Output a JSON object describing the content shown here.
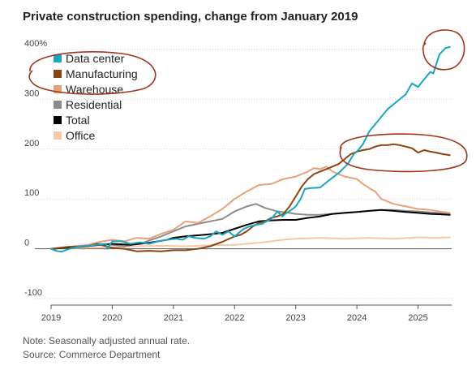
{
  "title": "Private construction spending, change from January 2019",
  "note": "Note: Seasonally adjusted annual rate.",
  "source": "Source: Commerce Department",
  "chart_data": {
    "type": "line",
    "title": "Private construction spending, change from January 2019",
    "ylabel": "",
    "xlabel": "",
    "ylim": [
      -100,
      400
    ],
    "xlim": [
      2019,
      2025.55
    ],
    "y_ticks": [
      {
        "value": 400,
        "label": "400%"
      },
      {
        "value": 300,
        "label": "300"
      },
      {
        "value": 200,
        "label": "200"
      },
      {
        "value": 100,
        "label": "100"
      },
      {
        "value": 0,
        "label": "0"
      },
      {
        "value": -100,
        "label": "-100"
      }
    ],
    "x_ticks": [
      "2019",
      "2020",
      "2021",
      "2022",
      "2023",
      "2024",
      "2025"
    ],
    "grid": "horizontal dotted",
    "legend_position": "top-left",
    "series": [
      {
        "name": "Data center",
        "color": "#1aa6c0",
        "points": [
          [
            2019,
            0
          ],
          [
            2019.08,
            -4
          ],
          [
            2019.17,
            -6
          ],
          [
            2019.3,
            0
          ],
          [
            2019.45,
            4
          ],
          [
            2019.6,
            6
          ],
          [
            2019.75,
            8
          ],
          [
            2019.9,
            10
          ],
          [
            2019.92,
            0
          ],
          [
            2020.0,
            15
          ],
          [
            2020.15,
            15
          ],
          [
            2020.3,
            10
          ],
          [
            2020.45,
            13
          ],
          [
            2020.6,
            10
          ],
          [
            2020.75,
            15
          ],
          [
            2020.9,
            18
          ],
          [
            2021.05,
            20
          ],
          [
            2021.15,
            18
          ],
          [
            2021.25,
            25
          ],
          [
            2021.35,
            22
          ],
          [
            2021.5,
            20
          ],
          [
            2021.6,
            25
          ],
          [
            2021.7,
            35
          ],
          [
            2021.8,
            28
          ],
          [
            2021.9,
            35
          ],
          [
            2022.0,
            25
          ],
          [
            2022.15,
            40
          ],
          [
            2022.25,
            45
          ],
          [
            2022.35,
            48
          ],
          [
            2022.45,
            50
          ],
          [
            2022.6,
            60
          ],
          [
            2022.7,
            75
          ],
          [
            2022.78,
            65
          ],
          [
            2022.85,
            72
          ],
          [
            2022.95,
            80
          ],
          [
            2023.0,
            85
          ],
          [
            2023.08,
            100
          ],
          [
            2023.15,
            120
          ],
          [
            2023.25,
            122
          ],
          [
            2023.4,
            123
          ],
          [
            2023.55,
            138
          ],
          [
            2023.7,
            152
          ],
          [
            2023.85,
            170
          ],
          [
            2023.95,
            190
          ],
          [
            2024.0,
            195
          ],
          [
            2024.1,
            210
          ],
          [
            2024.2,
            235
          ],
          [
            2024.3,
            250
          ],
          [
            2024.4,
            265
          ],
          [
            2024.5,
            280
          ],
          [
            2024.6,
            290
          ],
          [
            2024.7,
            300
          ],
          [
            2024.8,
            310
          ],
          [
            2024.9,
            332
          ],
          [
            2025.0,
            325
          ],
          [
            2025.1,
            340
          ],
          [
            2025.2,
            355
          ],
          [
            2025.25,
            352
          ],
          [
            2025.35,
            390
          ],
          [
            2025.45,
            403
          ],
          [
            2025.52,
            405
          ]
        ]
      },
      {
        "name": "Manufacturing",
        "color": "#8b4513",
        "points": [
          [
            2019,
            0
          ],
          [
            2019.3,
            4
          ],
          [
            2019.6,
            5
          ],
          [
            2019.75,
            10
          ],
          [
            2020.0,
            2
          ],
          [
            2020.2,
            0
          ],
          [
            2020.4,
            -5
          ],
          [
            2020.6,
            -4
          ],
          [
            2020.8,
            -5
          ],
          [
            2021.0,
            -3
          ],
          [
            2021.2,
            -3
          ],
          [
            2021.4,
            0
          ],
          [
            2021.6,
            5
          ],
          [
            2021.8,
            14
          ],
          [
            2022.0,
            25
          ],
          [
            2022.1,
            28
          ],
          [
            2022.2,
            35
          ],
          [
            2022.3,
            45
          ],
          [
            2022.4,
            52
          ],
          [
            2022.5,
            55
          ],
          [
            2022.6,
            62
          ],
          [
            2022.7,
            65
          ],
          [
            2022.8,
            70
          ],
          [
            2022.9,
            85
          ],
          [
            2023.0,
            105
          ],
          [
            2023.1,
            125
          ],
          [
            2023.2,
            140
          ],
          [
            2023.3,
            150
          ],
          [
            2023.4,
            155
          ],
          [
            2023.5,
            160
          ],
          [
            2023.6,
            165
          ],
          [
            2023.7,
            170
          ],
          [
            2023.8,
            180
          ],
          [
            2023.9,
            190
          ],
          [
            2024.0,
            195
          ],
          [
            2024.1,
            198
          ],
          [
            2024.2,
            200
          ],
          [
            2024.3,
            205
          ],
          [
            2024.4,
            208
          ],
          [
            2024.5,
            208
          ],
          [
            2024.6,
            210
          ],
          [
            2024.7,
            208
          ],
          [
            2024.8,
            205
          ],
          [
            2024.9,
            202
          ],
          [
            2025.0,
            193
          ],
          [
            2025.1,
            198
          ],
          [
            2025.2,
            195
          ],
          [
            2025.3,
            193
          ],
          [
            2025.4,
            190
          ],
          [
            2025.52,
            188
          ]
        ]
      },
      {
        "name": "Warehouse",
        "color": "#e8a27a",
        "points": [
          [
            2019,
            0
          ],
          [
            2019.3,
            4
          ],
          [
            2019.6,
            8
          ],
          [
            2019.8,
            14
          ],
          [
            2020.0,
            18
          ],
          [
            2020.2,
            15
          ],
          [
            2020.4,
            22
          ],
          [
            2020.6,
            20
          ],
          [
            2020.8,
            30
          ],
          [
            2021.0,
            38
          ],
          [
            2021.2,
            55
          ],
          [
            2021.4,
            52
          ],
          [
            2021.6,
            65
          ],
          [
            2021.8,
            80
          ],
          [
            2022.0,
            100
          ],
          [
            2022.2,
            115
          ],
          [
            2022.4,
            128
          ],
          [
            2022.6,
            130
          ],
          [
            2022.8,
            140
          ],
          [
            2023.0,
            145
          ],
          [
            2023.2,
            155
          ],
          [
            2023.3,
            162
          ],
          [
            2023.4,
            160
          ],
          [
            2023.5,
            165
          ],
          [
            2023.6,
            155
          ],
          [
            2023.8,
            145
          ],
          [
            2024.0,
            140
          ],
          [
            2024.1,
            130
          ],
          [
            2024.2,
            122
          ],
          [
            2024.3,
            115
          ],
          [
            2024.4,
            100
          ],
          [
            2024.6,
            90
          ],
          [
            2024.8,
            85
          ],
          [
            2025.0,
            80
          ],
          [
            2025.2,
            78
          ],
          [
            2025.4,
            74
          ],
          [
            2025.52,
            72
          ]
        ]
      },
      {
        "name": "Residential",
        "color": "#8c8c8c",
        "points": [
          [
            2019,
            0
          ],
          [
            2019.4,
            4
          ],
          [
            2019.8,
            10
          ],
          [
            2020.0,
            8
          ],
          [
            2020.2,
            5
          ],
          [
            2020.5,
            12
          ],
          [
            2020.8,
            25
          ],
          [
            2021.0,
            35
          ],
          [
            2021.2,
            45
          ],
          [
            2021.4,
            50
          ],
          [
            2021.6,
            55
          ],
          [
            2021.8,
            60
          ],
          [
            2022.0,
            75
          ],
          [
            2022.2,
            85
          ],
          [
            2022.35,
            90
          ],
          [
            2022.5,
            82
          ],
          [
            2022.7,
            75
          ],
          [
            2022.9,
            72
          ],
          [
            2023.0,
            70
          ],
          [
            2023.2,
            68
          ],
          [
            2023.4,
            68
          ],
          [
            2023.6,
            70
          ],
          [
            2023.8,
            72
          ],
          [
            2024.0,
            74
          ],
          [
            2024.2,
            76
          ],
          [
            2024.4,
            78
          ],
          [
            2024.6,
            78
          ],
          [
            2024.8,
            76
          ],
          [
            2025.0,
            75
          ],
          [
            2025.2,
            73
          ],
          [
            2025.52,
            71
          ]
        ]
      },
      {
        "name": "Total",
        "color": "#000000",
        "points": [
          [
            2019,
            0
          ],
          [
            2019.4,
            3
          ],
          [
            2019.8,
            8
          ],
          [
            2020.0,
            10
          ],
          [
            2020.3,
            8
          ],
          [
            2020.6,
            12
          ],
          [
            2020.9,
            18
          ],
          [
            2021.0,
            22
          ],
          [
            2021.2,
            25
          ],
          [
            2021.5,
            28
          ],
          [
            2021.8,
            32
          ],
          [
            2022.0,
            40
          ],
          [
            2022.2,
            48
          ],
          [
            2022.4,
            55
          ],
          [
            2022.6,
            57
          ],
          [
            2022.8,
            58
          ],
          [
            2023.0,
            58
          ],
          [
            2023.2,
            62
          ],
          [
            2023.4,
            65
          ],
          [
            2023.6,
            70
          ],
          [
            2023.8,
            72
          ],
          [
            2024.0,
            74
          ],
          [
            2024.2,
            76
          ],
          [
            2024.4,
            78
          ],
          [
            2024.6,
            76
          ],
          [
            2024.8,
            74
          ],
          [
            2025.0,
            72
          ],
          [
            2025.2,
            70
          ],
          [
            2025.4,
            69
          ],
          [
            2025.52,
            68
          ]
        ]
      },
      {
        "name": "Office",
        "color": "#f5c9a8",
        "points": [
          [
            2019,
            0
          ],
          [
            2019.5,
            2
          ],
          [
            2020.0,
            3
          ],
          [
            2020.4,
            5
          ],
          [
            2020.8,
            6
          ],
          [
            2021.2,
            5
          ],
          [
            2021.6,
            7
          ],
          [
            2022.0,
            8
          ],
          [
            2022.4,
            12
          ],
          [
            2022.8,
            18
          ],
          [
            2023.0,
            20
          ],
          [
            2023.4,
            22
          ],
          [
            2023.8,
            20
          ],
          [
            2024.2,
            22
          ],
          [
            2024.6,
            20
          ],
          [
            2025.0,
            23
          ],
          [
            2025.3,
            22
          ],
          [
            2025.52,
            23
          ]
        ]
      }
    ],
    "annotations": [
      {
        "type": "hand-drawn ellipse",
        "color": "#a0341e",
        "target": "legend: Data center / Manufacturing"
      },
      {
        "type": "hand-drawn ellipse",
        "color": "#a0341e",
        "target": "Data center line end (~400%)"
      },
      {
        "type": "hand-drawn ellipse",
        "color": "#a0341e",
        "target": "Manufacturing line plateau (2024–2025)"
      }
    ]
  }
}
